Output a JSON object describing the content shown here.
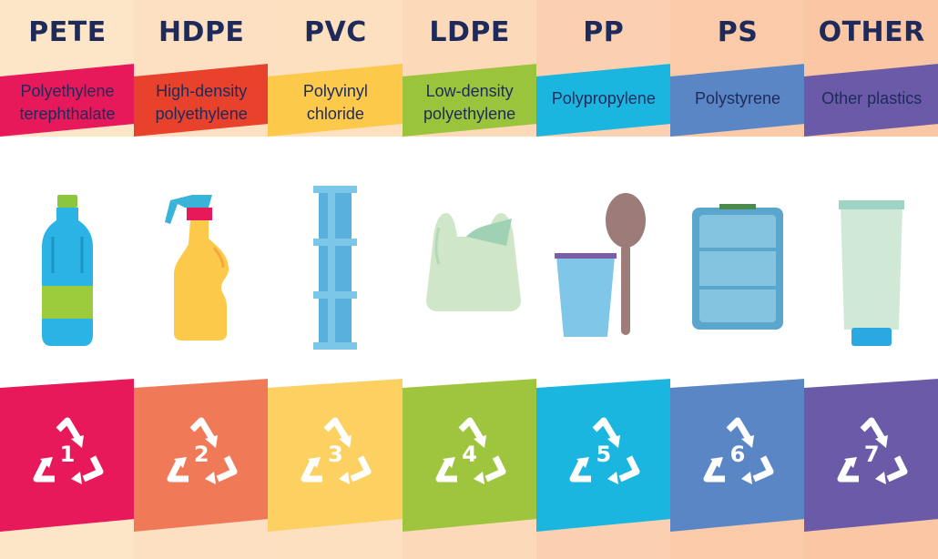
{
  "columns": [
    {
      "abbr": "PETE",
      "name_lines": [
        "Polyethylene",
        "terephthalate"
      ],
      "code": "1",
      "item": "bottle-icon",
      "accent": "#e8195a",
      "panel": "#e8195a",
      "bg": "#fde6c8"
    },
    {
      "abbr": "HDPE",
      "name_lines": [
        "High-density",
        "polyethylene"
      ],
      "code": "2",
      "item": "spray-bottle-icon",
      "accent": "#e8412c",
      "panel": "#f07a58",
      "bg": "#fddfc2"
    },
    {
      "abbr": "PVC",
      "name_lines": [
        "Polyvinyl",
        "chloride"
      ],
      "code": "3",
      "item": "pipe-icon",
      "accent": "#fcc94a",
      "panel": "#fdd062",
      "bg": "#fde0bf"
    },
    {
      "abbr": "LDPE",
      "name_lines": [
        "Low-density",
        "polyethylene"
      ],
      "code": "4",
      "item": "plastic-bag-icon",
      "accent": "#9ac43b",
      "panel": "#9ec53d",
      "bg": "#fcd9b9"
    },
    {
      "abbr": "PP",
      "name_lines": [
        "Polypropylene"
      ],
      "code": "5",
      "item": "cup-and-spoon-icon",
      "accent": "#1ab6e0",
      "panel": "#1ab6e0",
      "bg": "#fbd0b0"
    },
    {
      "abbr": "PS",
      "name_lines": [
        "Polystyrene"
      ],
      "code": "6",
      "item": "food-container-icon",
      "accent": "#5a86c5",
      "panel": "#5a86c5",
      "bg": "#fbcaa8"
    },
    {
      "abbr": "OTHER",
      "name_lines": [
        "Other plastics"
      ],
      "code": "7",
      "item": "tube-icon",
      "accent": "#6b5aa8",
      "panel": "#6b5aa8",
      "bg": "#fbc6a4"
    }
  ],
  "recycle_icon": "recycle-triangle-icon"
}
